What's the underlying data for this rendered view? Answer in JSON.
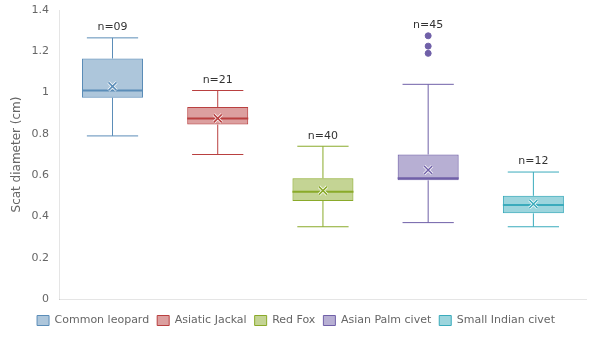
{
  "chart_data": {
    "type": "box",
    "ylabel": "Scat diameter (cm)",
    "ylim": [
      0,
      1.4
    ],
    "yticks": [
      0,
      0.2,
      0.4,
      0.6,
      0.8,
      1,
      1.2,
      1.4
    ],
    "grid": false,
    "legend": "bottom",
    "tick_labels": "y",
    "series": [
      {
        "name": "Common leopard",
        "color": "#5b8db8",
        "n_label": "n=09",
        "whislo": 0.79,
        "q1": 0.975,
        "med": 1.01,
        "q3": 1.165,
        "whishi": 1.265,
        "mean": 1.03,
        "fliers": []
      },
      {
        "name": "Asiatic Jackal",
        "color": "#b94040",
        "n_label": "n=21",
        "whislo": 0.7,
        "q1": 0.845,
        "med": 0.875,
        "q3": 0.93,
        "whishi": 1.01,
        "mean": 0.875,
        "fliers": []
      },
      {
        "name": "Red Fox",
        "color": "#8aaa2a",
        "n_label": "n=40",
        "whislo": 0.35,
        "q1": 0.475,
        "med": 0.52,
        "q3": 0.585,
        "whishi": 0.74,
        "mean": 0.525,
        "fliers": []
      },
      {
        "name": "Asian Palm civet",
        "color": "#7060a8",
        "n_label": "n=45",
        "whislo": 0.37,
        "q1": 0.575,
        "med": 0.585,
        "q3": 0.7,
        "whishi": 1.04,
        "mean": 0.625,
        "fliers": [
          1.19,
          1.225,
          1.275
        ]
      },
      {
        "name": "Small Indian civet",
        "color": "#3aabbc",
        "n_label": "n=12",
        "whislo": 0.35,
        "q1": 0.415,
        "med": 0.455,
        "q3": 0.5,
        "whishi": 0.615,
        "mean": 0.46,
        "fliers": []
      }
    ]
  }
}
